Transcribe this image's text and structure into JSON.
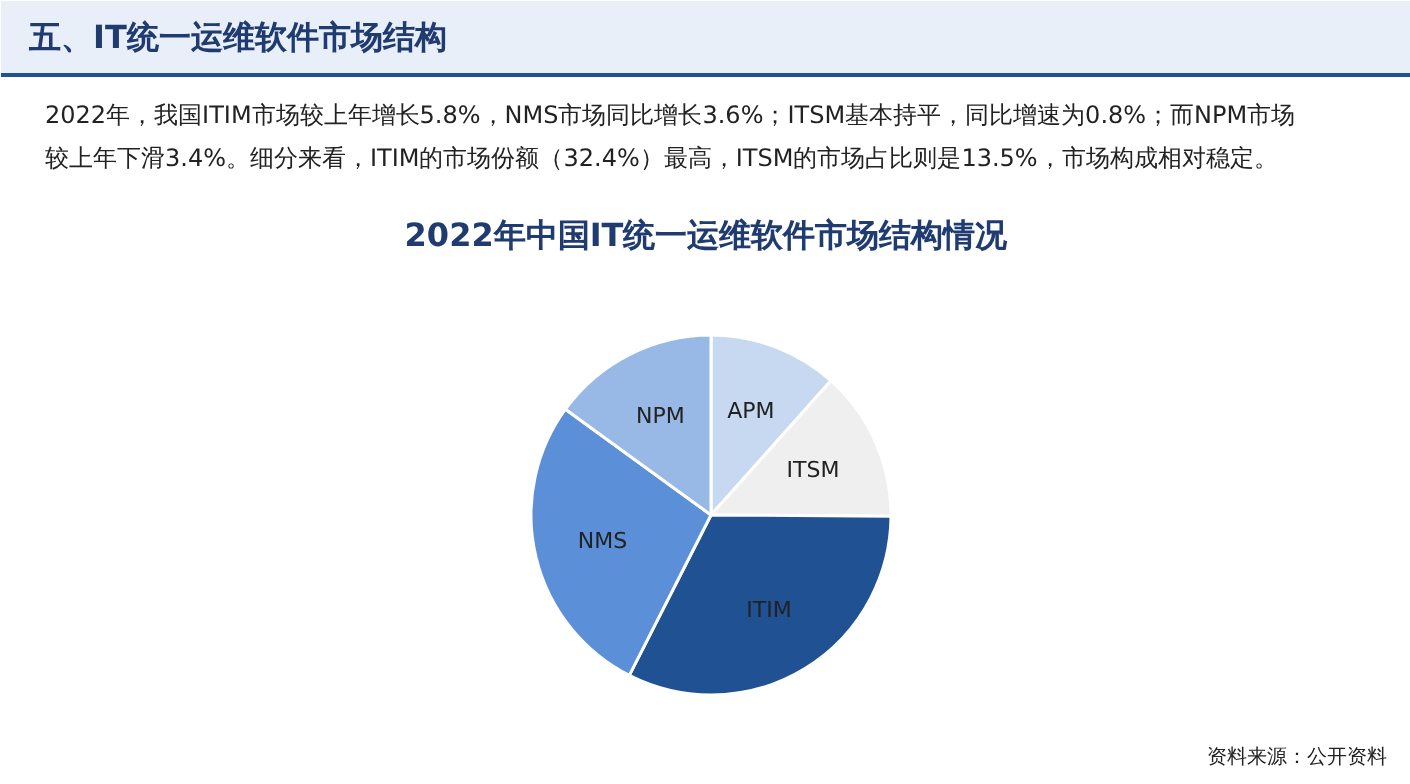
{
  "chart_data": {
    "type": "pie",
    "title": "2022年中国IT统一运维软件市场结构情况",
    "annotations": [
      "五、IT统一运维软件市场结构",
      "2022年，我国ITIM市场较上年增长5.8%，NMS市场同比增长3.6%；ITSM基本持平，同比增速为0.8%；而NPM市场较上年下滑3.4%。细分来看，ITIM的市场份额（32.4%）最高，ITSM的市场占比则是13.5%，市场构成相对稳定。",
      "资料来源：公开资料"
    ],
    "categories": [
      "APM",
      "ITSM",
      "ITIM",
      "NMS",
      "NPM"
    ],
    "values": [
      11.6,
      13.5,
      32.4,
      27.5,
      15.0
    ],
    "colors": [
      "#c6d9f1",
      "#efefef",
      "#1f5193",
      "#5b90d8",
      "#98b8e6"
    ]
  }
}
